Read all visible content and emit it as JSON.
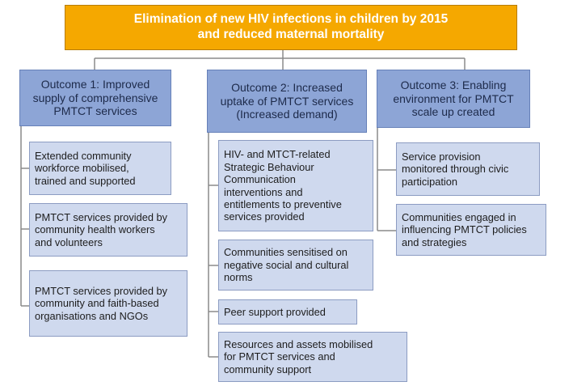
{
  "goal": {
    "lines": [
      "Elimination of new HIV infections in children by 2015",
      "and reduced maternal mortality"
    ]
  },
  "columns": [
    {
      "outcome": {
        "lines": [
          "Outcome 1: Improved",
          "supply of comprehensive",
          "PMTCT services"
        ]
      },
      "outputs": [
        {
          "lines": [
            "Extended community",
            "workforce mobilised,",
            "trained and supported"
          ]
        },
        {
          "lines": [
            "PMTCT services provided by",
            "community health workers",
            "and volunteers"
          ]
        },
        {
          "lines": [
            "PMTCT services provided by",
            "community and faith-based",
            "organisations and NGOs"
          ]
        }
      ]
    },
    {
      "outcome": {
        "lines": [
          "Outcome 2: Increased",
          "uptake of PMTCT services",
          "(Increased demand)"
        ]
      },
      "outputs": [
        {
          "lines": [
            "HIV- and MTCT-related",
            "Strategic Behaviour",
            "Communication",
            "interventions and",
            "entitlements to preventive",
            "services provided"
          ]
        },
        {
          "lines": [
            "Communities sensitised on",
            "negative social and cultural",
            "norms"
          ]
        },
        {
          "lines": [
            "Peer support provided"
          ]
        },
        {
          "lines": [
            "Resources  and assets mobilised",
            "for PMTCT services and",
            "community support"
          ]
        }
      ]
    },
    {
      "outcome": {
        "lines": [
          "Outcome 3: Enabling",
          "environment for PMTCT",
          "scale up created"
        ]
      },
      "outputs": [
        {
          "lines": [
            "Service provision",
            "monitored through civic",
            "participation"
          ]
        },
        {
          "lines": [
            "Communities engaged in",
            "influencing PMTCT policies",
            "and strategies"
          ]
        }
      ]
    }
  ]
}
